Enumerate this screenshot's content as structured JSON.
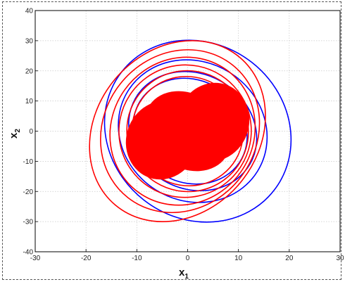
{
  "chart_data": {
    "type": "line",
    "title": "",
    "xlabel": "x",
    "xlabel_sub": "1",
    "ylabel": "x",
    "ylabel_sub": "2",
    "xlim": [
      -30,
      30
    ],
    "ylim": [
      -40,
      40
    ],
    "xticks": [
      -30,
      -20,
      -10,
      0,
      10,
      20,
      30
    ],
    "yticks": [
      -40,
      -30,
      -20,
      -10,
      0,
      10,
      20,
      30,
      40
    ],
    "grid": true,
    "legend": "none",
    "series": [
      {
        "color": "#0000ff",
        "loops": [
          {
            "cx": 2.0,
            "cy": 0.0,
            "rx": 19.0,
            "ry": 29.0,
            "angle": 38
          },
          {
            "cx": 1.0,
            "cy": 0.0,
            "rx": 15.0,
            "ry": 23.0,
            "angle": 32
          },
          {
            "cx": 1.0,
            "cy": 0.0,
            "rx": 13.0,
            "ry": 19.0,
            "angle": 30
          },
          {
            "cx": 0.5,
            "cy": 0.0,
            "rx": 11.5,
            "ry": 17.0,
            "angle": 28
          }
        ]
      },
      {
        "color": "#ff0000",
        "loops": [
          {
            "cx": -2.0,
            "cy": 0.0,
            "rx": 16.0,
            "ry": 32.0,
            "angle": 40
          },
          {
            "cx": -1.5,
            "cy": 0.0,
            "rx": 15.0,
            "ry": 28.0,
            "angle": 38
          },
          {
            "cx": -1.0,
            "cy": 0.0,
            "rx": 14.0,
            "ry": 25.0,
            "angle": 35
          },
          {
            "cx": -0.5,
            "cy": 0.0,
            "rx": 13.0,
            "ry": 22.0,
            "angle": 33
          },
          {
            "cx": 0.0,
            "cy": 0.0,
            "rx": 12.0,
            "ry": 20.0,
            "angle": 32
          },
          {
            "cx": 0.0,
            "cy": 0.0,
            "rx": 11.0,
            "ry": 18.0,
            "angle": 30
          }
        ],
        "cores": [
          {
            "cx": -5.0,
            "cy": -3.0,
            "rx": 7.0,
            "ry": 13.0,
            "angle": 18
          },
          {
            "cx": 5.0,
            "cy": 3.0,
            "rx": 7.0,
            "ry": 13.0,
            "angle": 18
          },
          {
            "cx": 0.0,
            "cy": 0.0,
            "rx": 9.0,
            "ry": 12.0,
            "angle": 35
          }
        ]
      }
    ]
  }
}
